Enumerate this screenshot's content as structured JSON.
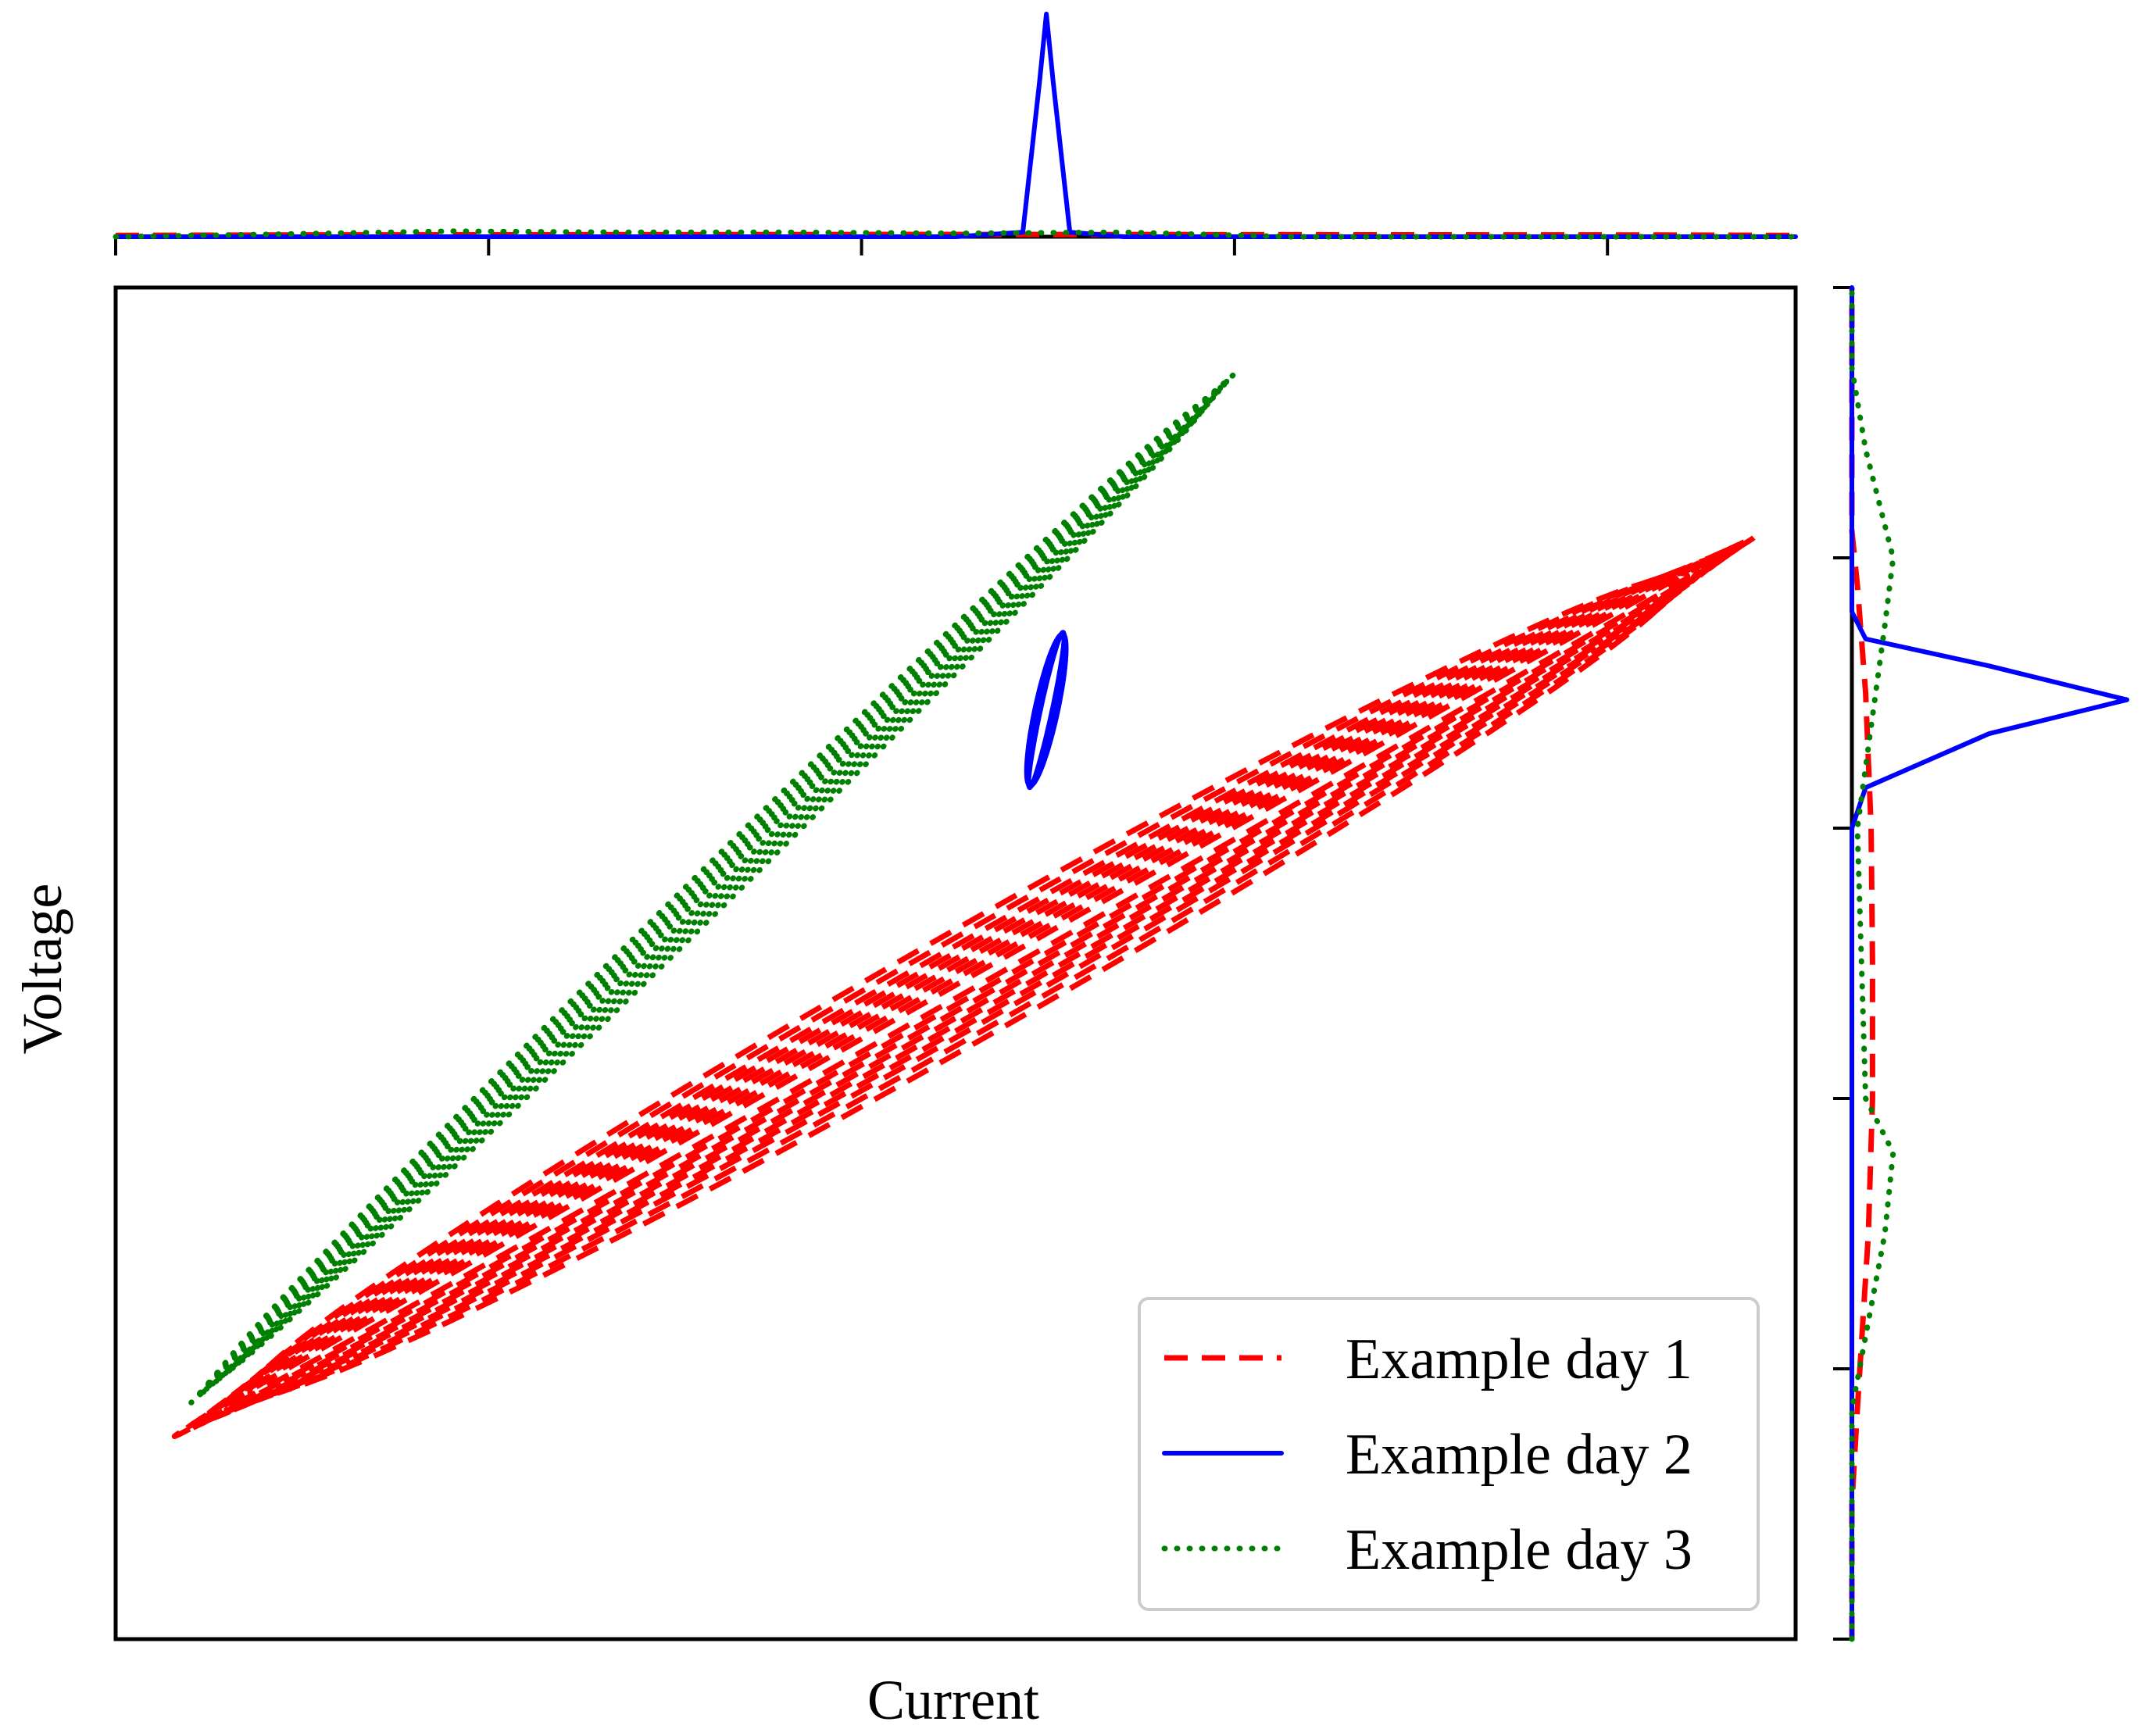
{
  "chart_data": {
    "type": "scatter",
    "subtype": "joint plot with marginal density curves (Lissajous-style current-voltage loops)",
    "xlabel": "Current",
    "ylabel": "Voltage",
    "xlim": [
      0,
      1
    ],
    "ylim": [
      0,
      1
    ],
    "ticks_labeled": false,
    "x_tick_values": [
      0.0,
      0.222,
      0.444,
      0.666,
      0.888
    ],
    "y_tick_values": [
      0.0,
      0.2,
      0.4,
      0.6,
      0.8,
      1.0
    ],
    "grid": false,
    "legend_position": "lower-right",
    "series": [
      {
        "name": "Example day 1",
        "color": "#ff0000",
        "line_style": "dashed",
        "shape": "nested elliptical loops",
        "center": [
          0.5,
          0.43
        ],
        "major_axis_end_low": [
          0.035,
          0.15
        ],
        "major_axis_end_high": [
          0.975,
          0.815
        ],
        "loop_half_widths": [
          0.004,
          0.008,
          0.012,
          0.016,
          0.02,
          0.024,
          0.028,
          0.033,
          0.038
        ],
        "marginal_x_density": [
          [
            0.0,
            0.006
          ],
          [
            0.1,
            0.008
          ],
          [
            0.3,
            0.009
          ],
          [
            0.5,
            0.01
          ],
          [
            0.7,
            0.009
          ],
          [
            0.9,
            0.008
          ],
          [
            1.0,
            0.006
          ]
        ],
        "marginal_y_density": [
          [
            0.1,
            0.0
          ],
          [
            0.17,
            0.02
          ],
          [
            0.3,
            0.06
          ],
          [
            0.4,
            0.075
          ],
          [
            0.5,
            0.075
          ],
          [
            0.6,
            0.07
          ],
          [
            0.7,
            0.05
          ],
          [
            0.78,
            0.02
          ],
          [
            0.82,
            0.0
          ]
        ]
      },
      {
        "name": "Example day 2",
        "color": "#0000ff",
        "line_style": "solid",
        "shape": "small narrow loop cluster",
        "center": [
          0.554,
          0.692
        ],
        "major_axis_end_low": [
          0.544,
          0.63
        ],
        "major_axis_end_high": [
          0.564,
          0.745
        ],
        "loop_half_widths": [
          0.004,
          0.006,
          0.008
        ],
        "marginal_x_density": [
          [
            0.5,
            0.0
          ],
          [
            0.54,
            0.02
          ],
          [
            0.55,
            0.7
          ],
          [
            0.554,
            1.0
          ],
          [
            0.558,
            0.7
          ],
          [
            0.568,
            0.02
          ],
          [
            0.6,
            0.0
          ]
        ],
        "marginal_y_density": [
          [
            0.6,
            0.0
          ],
          [
            0.63,
            0.05
          ],
          [
            0.67,
            0.5
          ],
          [
            0.695,
            1.0
          ],
          [
            0.72,
            0.5
          ],
          [
            0.74,
            0.05
          ],
          [
            0.76,
            0.0
          ]
        ]
      },
      {
        "name": "Example day 3",
        "color": "#008000",
        "line_style": "dotted",
        "shape": "thin elongated loops",
        "center": [
          0.37,
          0.59
        ],
        "major_axis_end_low": [
          0.045,
          0.175
        ],
        "major_axis_end_high": [
          0.665,
          0.935
        ],
        "loop_half_widths": [
          0.002,
          0.005,
          0.008,
          0.011,
          0.014
        ],
        "marginal_x_density": [
          [
            0.0,
            0.0
          ],
          [
            0.1,
            0.012
          ],
          [
            0.2,
            0.025
          ],
          [
            0.3,
            0.02
          ],
          [
            0.4,
            0.02
          ],
          [
            0.5,
            0.015
          ],
          [
            0.6,
            0.02
          ],
          [
            0.7,
            0.0
          ]
        ],
        "marginal_y_density": [
          [
            0.17,
            0.0
          ],
          [
            0.3,
            0.12
          ],
          [
            0.36,
            0.15
          ],
          [
            0.4,
            0.05
          ],
          [
            0.6,
            0.02
          ],
          [
            0.75,
            0.12
          ],
          [
            0.8,
            0.15
          ],
          [
            0.88,
            0.05
          ],
          [
            0.94,
            0.0
          ]
        ]
      }
    ]
  }
}
